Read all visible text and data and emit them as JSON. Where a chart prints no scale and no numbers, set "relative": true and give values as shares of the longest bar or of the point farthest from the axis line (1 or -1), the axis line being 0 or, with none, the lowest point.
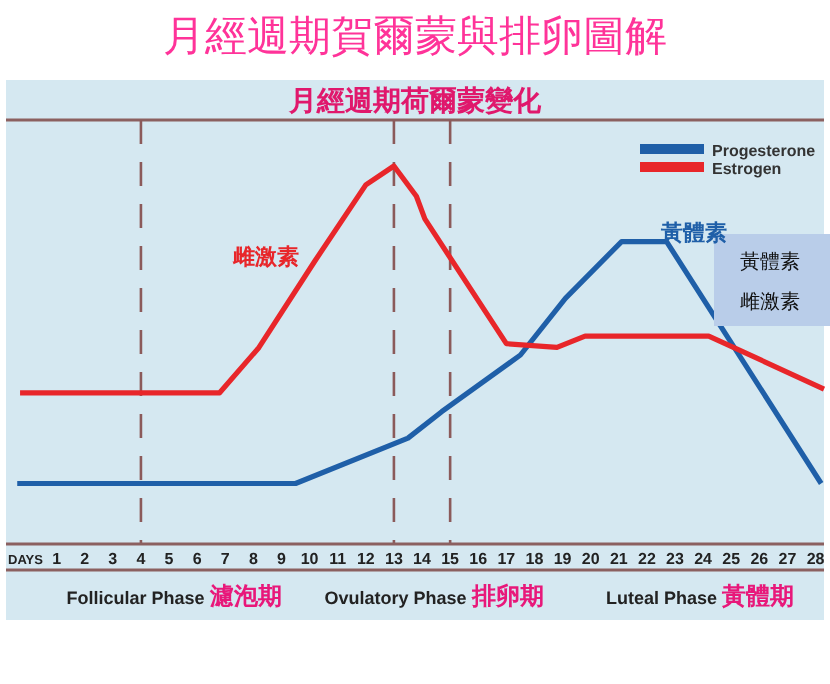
{
  "chart_data": {
    "type": "line",
    "title": "月經週期賀爾蒙與排卵圖解",
    "subtitle": "月經週期荷爾蒙變化",
    "xlabel": "DAYS",
    "relative": true,
    "xlim": [
      -0.8,
      28.3
    ],
    "xticks": [
      1,
      2,
      3,
      4,
      5,
      6,
      7,
      8,
      9,
      10,
      11,
      12,
      13,
      14,
      15,
      16,
      17,
      18,
      19,
      20,
      21,
      22,
      23,
      24,
      25,
      26,
      27,
      28
    ],
    "legend": "top right",
    "marker": "none",
    "line_style": "solid",
    "grid": false,
    "series": [
      {
        "name": "Progesterone",
        "color": "#1f5fa8",
        "x": [
          -0.4,
          9.5,
          13.5,
          14.7,
          17.5,
          19.1,
          21.1,
          22.7,
          28.2
        ],
        "values": [
          0.16,
          0.16,
          0.28,
          0.35,
          0.5,
          0.65,
          0.8,
          0.8,
          0.16
        ]
      },
      {
        "name": "Estrogen",
        "color": "#e8262a",
        "x": [
          -0.3,
          6.8,
          8.2,
          10.2,
          12,
          13,
          13.8,
          14.1,
          17,
          18.8,
          19.8,
          24.2,
          28.3
        ],
        "values": [
          0.4,
          0.4,
          0.52,
          0.75,
          0.95,
          1,
          0.92,
          0.86,
          0.53,
          0.52,
          0.55,
          0.55,
          0.41
        ]
      }
    ],
    "ref_lines": [
      {
        "axis": "x",
        "value": 4,
        "color": "#8b5a5a",
        "line_style": "dashed"
      },
      {
        "axis": "x",
        "value": 13,
        "color": "#8b5a5a",
        "line_style": "dashed"
      },
      {
        "axis": "x",
        "value": 15,
        "color": "#8b5a5a",
        "line_style": "dashed"
      }
    ],
    "annotations": [
      "雌激素",
      "黃體素",
      "黃體素",
      "雌激素",
      "Follicular Phase 濾泡期",
      "Ovulatory Phase 排卵期",
      "Luteal Phase 黃體期"
    ]
  }
}
